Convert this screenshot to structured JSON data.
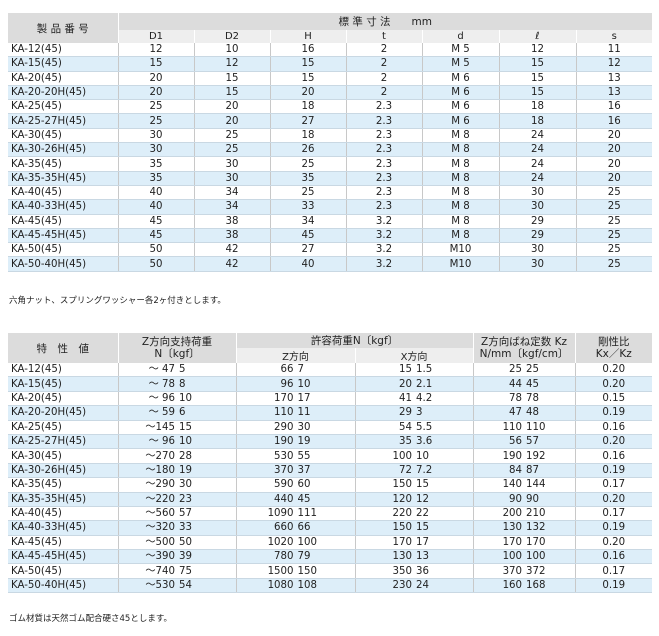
{
  "table1": {
    "header_col1": "製 品 番 号",
    "header_group": "標 準 寸 法　　mm",
    "subheaders": [
      "D1",
      "D2",
      "H",
      "t",
      "d",
      "ℓ",
      "s"
    ],
    "rows": [
      [
        "KA-12(45)",
        "12",
        "10",
        "16",
        "2",
        "M 5",
        "12",
        "11"
      ],
      [
        "KA-15(45)",
        "15",
        "12",
        "15",
        "2",
        "M 5",
        "15",
        "12"
      ],
      [
        "KA-20(45)",
        "20",
        "15",
        "15",
        "2",
        "M 6",
        "15",
        "13"
      ],
      [
        "KA-20-20H(45)",
        "20",
        "15",
        "20",
        "2",
        "M 6",
        "15",
        "13"
      ],
      [
        "KA-25(45)",
        "25",
        "20",
        "18",
        "2.3",
        "M 6",
        "18",
        "16"
      ],
      [
        "KA-25-27H(45)",
        "25",
        "20",
        "27",
        "2.3",
        "M 6",
        "18",
        "16"
      ],
      [
        "KA-30(45)",
        "30",
        "25",
        "18",
        "2.3",
        "M 8",
        "24",
        "20"
      ],
      [
        "KA-30-26H(45)",
        "30",
        "25",
        "26",
        "2.3",
        "M 8",
        "24",
        "20"
      ],
      [
        "KA-35(45)",
        "35",
        "30",
        "25",
        "2.3",
        "M 8",
        "24",
        "20"
      ],
      [
        "KA-35-35H(45)",
        "35",
        "30",
        "35",
        "2.3",
        "M 8",
        "24",
        "20"
      ],
      [
        "KA-40(45)",
        "40",
        "34",
        "25",
        "2.3",
        "M 8",
        "30",
        "25"
      ],
      [
        "KA-40-33H(45)",
        "40",
        "34",
        "33",
        "2.3",
        "M 8",
        "30",
        "25"
      ],
      [
        "KA-45(45)",
        "45",
        "38",
        "34",
        "3.2",
        "M 8",
        "29",
        "25"
      ],
      [
        "KA-45-45H(45)",
        "45",
        "38",
        "45",
        "3.2",
        "M 8",
        "29",
        "25"
      ],
      [
        "KA-50(45)",
        "50",
        "42",
        "27",
        "3.2",
        "M10",
        "30",
        "25"
      ],
      [
        "KA-50-40H(45)",
        "50",
        "42",
        "40",
        "3.2",
        "M10",
        "30",
        "25"
      ]
    ],
    "note": "六角ナット、スプリングワッシャー各2ヶ付きとします。"
  },
  "table2": {
    "header_col1": "特　性　値",
    "header_zsupport_line1": "Z方向支持荷重",
    "header_zsupport_line2": "N〔kgf〕",
    "header_allow": "許容荷重N〔kgf〕",
    "header_z": "Z方向",
    "header_x": "X方向",
    "header_kz_line1": "Z方向ばね定数 Kz",
    "header_kz_line2": "N/mm〔kgf/cm〕",
    "header_ratio_line1": "剛性比",
    "header_ratio_line2": "Kx／Kz",
    "rows": [
      [
        "KA-12(45)",
        "～ 47",
        "5",
        "66",
        "7",
        "15",
        "1.5",
        "25",
        "25",
        "0.20"
      ],
      [
        "KA-15(45)",
        "～ 78",
        "8",
        "96",
        "10",
        "20",
        "2.1",
        "44",
        "45",
        "0.20"
      ],
      [
        "KA-20(45)",
        "～ 96",
        "10",
        "170",
        "17",
        "41",
        "4.2",
        "78",
        "78",
        "0.15"
      ],
      [
        "KA-20-20H(45)",
        "～ 59",
        "6",
        "110",
        "11",
        "29",
        "3",
        "47",
        "48",
        "0.19"
      ],
      [
        "KA-25(45)",
        "～145",
        "15",
        "290",
        "30",
        "54",
        "5.5",
        "110",
        "110",
        "0.16"
      ],
      [
        "KA-25-27H(45)",
        "～ 96",
        "10",
        "190",
        "19",
        "35",
        "3.6",
        "56",
        "57",
        "0.20"
      ],
      [
        "KA-30(45)",
        "～270",
        "28",
        "530",
        "55",
        "100",
        "10",
        "190",
        "192",
        "0.16"
      ],
      [
        "KA-30-26H(45)",
        "～180",
        "19",
        "370",
        "37",
        "72",
        "7.2",
        "84",
        "87",
        "0.19"
      ],
      [
        "KA-35(45)",
        "～290",
        "30",
        "590",
        "60",
        "150",
        "15",
        "140",
        "144",
        "0.17"
      ],
      [
        "KA-35-35H(45)",
        "～220",
        "23",
        "440",
        "45",
        "120",
        "12",
        "90",
        "90",
        "0.20"
      ],
      [
        "KA-40(45)",
        "～560",
        "57",
        "1090",
        "111",
        "220",
        "22",
        "200",
        "210",
        "0.17"
      ],
      [
        "KA-40-33H(45)",
        "～320",
        "33",
        "660",
        "66",
        "150",
        "15",
        "130",
        "132",
        "0.19"
      ],
      [
        "KA-45(45)",
        "～500",
        "50",
        "1020",
        "100",
        "170",
        "17",
        "170",
        "170",
        "0.20"
      ],
      [
        "KA-45-45H(45)",
        "～390",
        "39",
        "780",
        "79",
        "130",
        "13",
        "100",
        "100",
        "0.16"
      ],
      [
        "KA-50(45)",
        "～740",
        "75",
        "1500",
        "150",
        "350",
        "36",
        "370",
        "372",
        "0.17"
      ],
      [
        "KA-50-40H(45)",
        "～530",
        "54",
        "1080",
        "108",
        "230",
        "24",
        "160",
        "168",
        "0.19"
      ]
    ],
    "note": "ゴム材質は天然ゴム配合硬さ45とします。"
  }
}
